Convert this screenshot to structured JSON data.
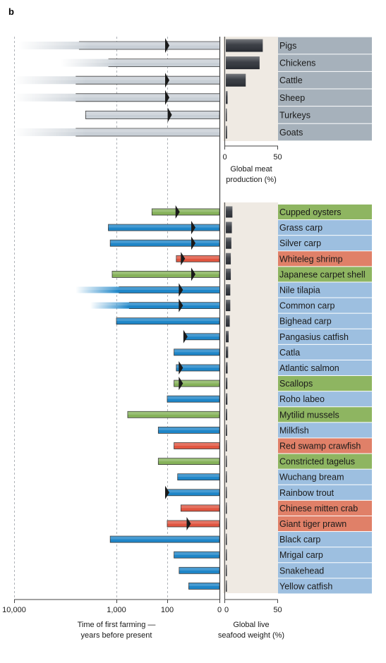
{
  "panel_label": "b",
  "colors": {
    "mammal_bird": "#c8cfd6",
    "fish": "#1f86c8",
    "mollusc": "#86b25a",
    "crustacean": "#e05540",
    "meat_label_bg": "#a6b1bb",
    "fish_label_bg": "#9dbfe0",
    "mollusc_label_bg": "#8eb561",
    "crustacean_label_bg": "#e08068",
    "production_bg": "#efeae3",
    "production_bar": "#2b2f36"
  },
  "chart_data": [
    {
      "type": "bar",
      "title": "",
      "xlabel": "Global meat production (%)",
      "xlim": [
        0,
        50
      ],
      "xticks": [
        "0",
        "50"
      ],
      "categories": [
        "Pigs",
        "Chickens",
        "Cattle",
        "Sheep",
        "Turkeys",
        "Goats"
      ],
      "values": [
        36,
        33,
        20,
        3,
        2,
        2.5
      ],
      "first_farming_years_bp": [
        9000,
        3500,
        10000,
        10000,
        2000,
        10000
      ],
      "first_farming_faded": [
        true,
        true,
        true,
        true,
        false,
        true
      ],
      "first_farming_arrow_years_bp": [
        100,
        null,
        100,
        100,
        80,
        null
      ]
    },
    {
      "type": "bar",
      "title": "",
      "xlabel": "Global live seafood weight (%)",
      "xlim": [
        0,
        50
      ],
      "xticks": [
        "0",
        "50"
      ],
      "categories": [
        "Cupped oysters",
        "Grass carp",
        "Silver carp",
        "Whiteleg shrimp",
        "Japanese carpet shell",
        "Nile tilapia",
        "Common carp",
        "Bighead carp",
        "Pangasius catfish",
        "Catla",
        "Atlantic salmon",
        "Scallops",
        "Roho labeo",
        "Mytilid mussels",
        "Milkfish",
        "Red swamp crawfish",
        "Constricted tagelus",
        "Wuchang bream",
        "Rainbow trout",
        "Chinese mitten crab",
        "Giant tiger prawn",
        "Black carp",
        "Mrigal carp",
        "Snakehead",
        "Yellow catfish"
      ],
      "groups": [
        "mollusc",
        "fish",
        "fish",
        "crustacean",
        "mollusc",
        "fish",
        "fish",
        "fish",
        "fish",
        "fish",
        "fish",
        "mollusc",
        "fish",
        "mollusc",
        "fish",
        "crustacean",
        "mollusc",
        "fish",
        "fish",
        "crustacean",
        "crustacean",
        "fish",
        "fish",
        "fish",
        "fish"
      ],
      "values": [
        7.5,
        7,
        6.5,
        6,
        6,
        5.5,
        5.5,
        5,
        4,
        3.5,
        3,
        2.8,
        2.8,
        2.6,
        2.5,
        1.5,
        1.2,
        1.5,
        1.3,
        1.2,
        1.2,
        1.2,
        1,
        1,
        0.8
      ],
      "first_farming_years_bp": [
        200,
        1200,
        1150,
        45,
        1100,
        2500,
        1800,
        1000,
        20,
        55,
        45,
        55,
        100,
        600,
        150,
        55,
        150,
        40,
        100,
        30,
        100,
        1150,
        55,
        35,
        15
      ],
      "first_farming_faded": [
        false,
        false,
        false,
        false,
        false,
        true,
        true,
        false,
        false,
        false,
        false,
        false,
        false,
        false,
        false,
        false,
        false,
        false,
        false,
        false,
        false,
        false,
        false,
        false,
        false
      ],
      "first_farming_arrow_years_bp": [
        40,
        10,
        10,
        25,
        10,
        30,
        30,
        null,
        20,
        null,
        30,
        30,
        null,
        null,
        null,
        null,
        null,
        null,
        100,
        null,
        15,
        null,
        null,
        null,
        null
      ]
    }
  ],
  "time_axis": {
    "label_line1": "Time of first farming —",
    "label_line2": "years before present",
    "ticks": [
      "10,000",
      "1,000",
      "100",
      "0"
    ]
  },
  "meat_axis": {
    "label_line1": "Global meat",
    "label_line2": "production (%)"
  },
  "seafood_axis": {
    "label_line1": "Global live",
    "label_line2": "seafood weight (%)"
  }
}
